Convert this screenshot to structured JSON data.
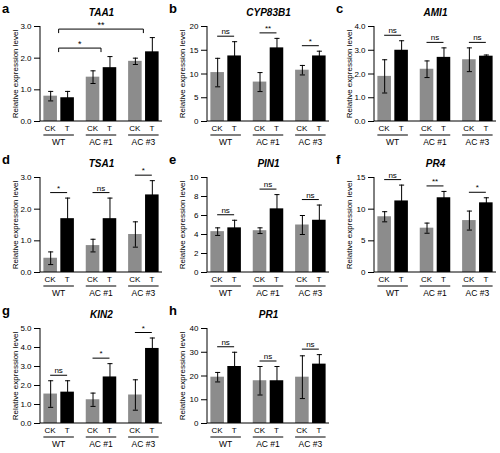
{
  "chart_data": [
    {
      "type": "bar",
      "panel": "a",
      "title": "TAA1",
      "y_label": "Relative expression level",
      "groups": [
        "WT",
        "AC #1",
        "AC #3"
      ],
      "categories": [
        "CK",
        "T",
        "CK",
        "T",
        "CK",
        "T"
      ],
      "values": [
        0.8,
        0.75,
        1.4,
        1.7,
        1.9,
        2.2
      ],
      "errors": [
        0.15,
        0.2,
        0.2,
        0.35,
        0.1,
        0.45
      ],
      "colors": [
        "#8c8c8c",
        "#000000",
        "#8c8c8c",
        "#000000",
        "#8c8c8c",
        "#000000"
      ],
      "ylim": [
        0,
        3
      ],
      "yticks": [
        0,
        1,
        2,
        3
      ],
      "comparisons": [
        {
          "from": "WT",
          "to": "AC #1",
          "label": "*"
        },
        {
          "from": "WT",
          "to": "AC #3",
          "label": "**"
        }
      ]
    },
    {
      "type": "bar",
      "panel": "b",
      "title": "CYP83B1",
      "y_label": "Relative expression level",
      "groups": [
        "WT",
        "AC #1",
        "AC #3"
      ],
      "categories": [
        "CK",
        "T",
        "CK",
        "T",
        "CK",
        "T"
      ],
      "values": [
        10.3,
        13.8,
        8.3,
        15.5,
        10.8,
        13.8
      ],
      "errors": [
        3,
        3,
        2,
        2,
        1,
        1
      ],
      "colors": [
        "#8c8c8c",
        "#000000",
        "#8c8c8c",
        "#000000",
        "#8c8c8c",
        "#000000"
      ],
      "ylim": [
        0,
        20
      ],
      "yticks": [
        0,
        5,
        10,
        15,
        20
      ],
      "significance": [
        "ns",
        "**",
        "*"
      ]
    },
    {
      "type": "bar",
      "panel": "c",
      "title": "AMI1",
      "y_label": "Relative expression level",
      "groups": [
        "WT",
        "AC #1",
        "AC #3"
      ],
      "categories": [
        "CK",
        "T",
        "CK",
        "T",
        "CK",
        "T"
      ],
      "values": [
        1.9,
        3.0,
        2.2,
        2.7,
        2.6,
        2.75
      ],
      "errors": [
        0.7,
        0.4,
        0.35,
        0.4,
        0.5,
        0.05
      ],
      "colors": [
        "#8c8c8c",
        "#000000",
        "#8c8c8c",
        "#000000",
        "#8c8c8c",
        "#000000"
      ],
      "ylim": [
        0,
        4
      ],
      "yticks": [
        0,
        1,
        2,
        3,
        4
      ],
      "significance": [
        "ns",
        "ns",
        "ns"
      ]
    },
    {
      "type": "bar",
      "panel": "d",
      "title": "TSA1",
      "y_label": "Relative expression level",
      "groups": [
        "WT",
        "AC #1",
        "AC #3"
      ],
      "categories": [
        "CK",
        "T",
        "CK",
        "T",
        "CK",
        "T"
      ],
      "values": [
        0.45,
        1.7,
        0.85,
        1.7,
        1.2,
        2.45
      ],
      "errors": [
        0.2,
        0.65,
        0.2,
        0.65,
        0.4,
        0.45
      ],
      "colors": [
        "#8c8c8c",
        "#000000",
        "#8c8c8c",
        "#000000",
        "#8c8c8c",
        "#000000"
      ],
      "ylim": [
        0,
        3
      ],
      "yticks": [
        0,
        1,
        2,
        3
      ],
      "significance": [
        "*",
        "ns",
        "*"
      ]
    },
    {
      "type": "bar",
      "panel": "e",
      "title": "PIN1",
      "y_label": "Relative expression level",
      "groups": [
        "WT",
        "AC #1",
        "AC #3"
      ],
      "categories": [
        "CK",
        "T",
        "CK",
        "T",
        "CK",
        "T"
      ],
      "values": [
        4.3,
        4.7,
        4.4,
        6.7,
        5.0,
        5.5
      ],
      "errors": [
        0.4,
        0.8,
        0.3,
        1.5,
        1.0,
        1.6
      ],
      "colors": [
        "#8c8c8c",
        "#000000",
        "#8c8c8c",
        "#000000",
        "#8c8c8c",
        "#000000"
      ],
      "ylim": [
        0,
        10
      ],
      "yticks": [
        0,
        2,
        4,
        6,
        8,
        10
      ],
      "significance": [
        "ns",
        "ns",
        "ns"
      ]
    },
    {
      "type": "bar",
      "panel": "f",
      "title": "PR4",
      "y_label": "Relative expression level",
      "groups": [
        "WT",
        "AC #1",
        "AC #3"
      ],
      "categories": [
        "CK",
        "T",
        "CK",
        "T",
        "CK",
        "T"
      ],
      "values": [
        8.8,
        11.3,
        7.0,
        11.8,
        8.2,
        11.0
      ],
      "errors": [
        0.8,
        2.5,
        0.8,
        1.0,
        1.5,
        0.8
      ],
      "colors": [
        "#8c8c8c",
        "#000000",
        "#8c8c8c",
        "#000000",
        "#8c8c8c",
        "#000000"
      ],
      "ylim": [
        0,
        15
      ],
      "yticks": [
        0,
        5,
        10,
        15
      ],
      "significance": [
        "ns",
        "**",
        "*"
      ]
    },
    {
      "type": "bar",
      "panel": "g",
      "title": "KIN2",
      "y_label": "Relative expression level",
      "groups": [
        "WT",
        "AC #1",
        "AC #3"
      ],
      "categories": [
        "CK",
        "T",
        "CK",
        "T",
        "CK",
        "T"
      ],
      "values": [
        1.55,
        1.65,
        1.25,
        2.45,
        1.5,
        3.95
      ],
      "errors": [
        0.7,
        0.6,
        0.35,
        0.7,
        0.8,
        0.55
      ],
      "colors": [
        "#8c8c8c",
        "#000000",
        "#8c8c8c",
        "#000000",
        "#8c8c8c",
        "#000000"
      ],
      "ylim": [
        0,
        5
      ],
      "yticks": [
        0,
        1,
        2,
        3,
        4,
        5
      ],
      "significance": [
        "ns",
        "*",
        "*"
      ]
    },
    {
      "type": "bar",
      "panel": "h",
      "title": "PR1",
      "y_label": "Relative expression level",
      "groups": [
        "WT",
        "AC #1",
        "AC #3"
      ],
      "categories": [
        "CK",
        "T",
        "CK",
        "T",
        "CK",
        "T"
      ],
      "values": [
        19.5,
        24,
        18,
        18,
        19.5,
        25
      ],
      "errors": [
        2,
        6,
        6,
        6,
        9,
        4
      ],
      "colors": [
        "#8c8c8c",
        "#000000",
        "#8c8c8c",
        "#000000",
        "#8c8c8c",
        "#000000"
      ],
      "ylim": [
        0,
        40
      ],
      "yticks": [
        0,
        10,
        20,
        30,
        40
      ],
      "significance": [
        "ns",
        "ns",
        "ns"
      ]
    }
  ]
}
